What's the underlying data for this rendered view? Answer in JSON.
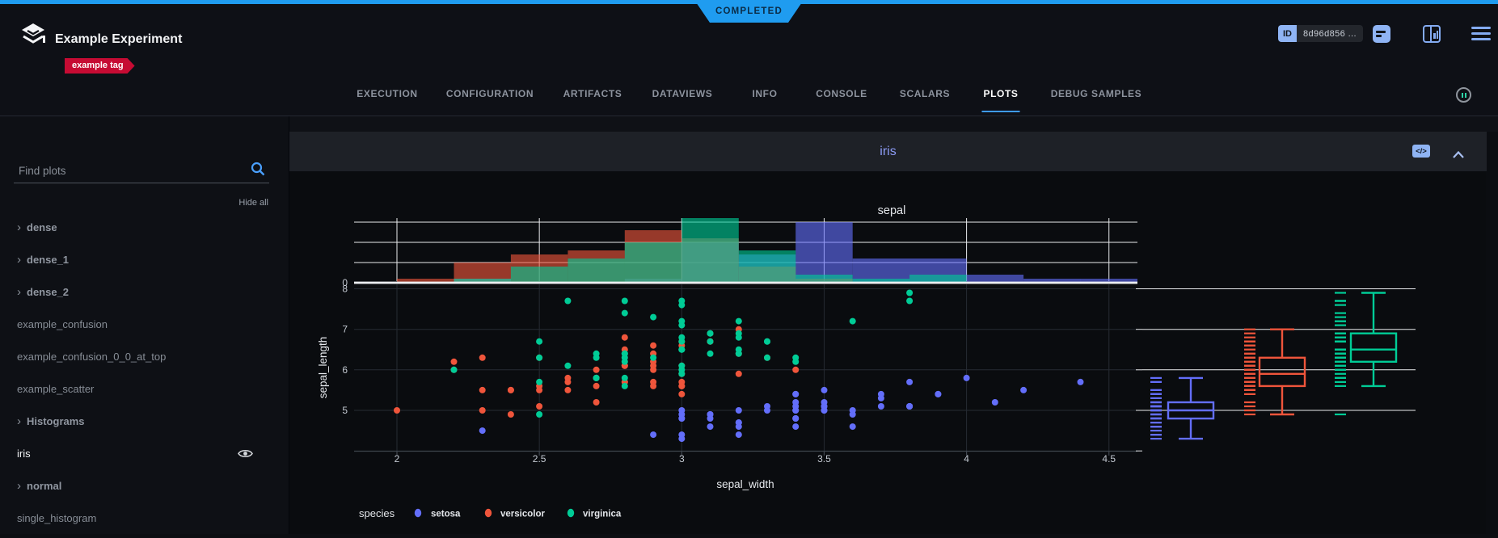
{
  "status_ribbon": "COMPLETED",
  "header": {
    "title": "Example Experiment",
    "tag": "example tag",
    "id_label": "ID",
    "id_value": "8d96d856 ..."
  },
  "tabs": [
    {
      "label": "EXECUTION"
    },
    {
      "label": "CONFIGURATION"
    },
    {
      "label": "ARTIFACTS"
    },
    {
      "label": "DATAVIEWS"
    },
    {
      "label": "INFO"
    },
    {
      "label": "CONSOLE"
    },
    {
      "label": "SCALARS"
    },
    {
      "label": "PLOTS",
      "active": true
    },
    {
      "label": "DEBUG SAMPLES"
    }
  ],
  "sidebar": {
    "search_placeholder": "Find plots",
    "hide_all": "Hide all",
    "items": [
      {
        "label": "dense",
        "group": true
      },
      {
        "label": "dense_1",
        "group": true
      },
      {
        "label": "dense_2",
        "group": true
      },
      {
        "label": "example_confusion"
      },
      {
        "label": "example_confusion_0_0_at_top"
      },
      {
        "label": "example_scatter"
      },
      {
        "label": "Histograms",
        "group": true
      },
      {
        "label": "iris",
        "active": true,
        "visible_eye": true
      },
      {
        "label": "normal",
        "group": true
      },
      {
        "label": "single_histogram"
      }
    ]
  },
  "panel": {
    "title": "iris",
    "code_icon": "</>"
  },
  "chart_data": {
    "type": "scatter",
    "title": "sepal",
    "xlabel": "sepal_width",
    "ylabel": "sepal_length",
    "x_ticks": [
      2,
      2.5,
      3,
      3.5,
      4,
      4.5
    ],
    "y_ticks": [
      5,
      6,
      7,
      8
    ],
    "xlim": [
      1.85,
      4.6
    ],
    "ylim": [
      4.0,
      8.1
    ],
    "grid": true,
    "legend_title": "species",
    "legend_position": "bottom-left",
    "marginal_x": "histogram",
    "marginal_y": "box+rug",
    "hist_bin_start": 2.0,
    "hist_bin_size": 0.2,
    "hist_zero_label": "0",
    "hist_grid_counts": [
      5,
      10,
      15
    ],
    "series": [
      {
        "name": "setosa",
        "color": "#636EFA",
        "points": [
          [
            3.5,
            5.1
          ],
          [
            3.0,
            4.9
          ],
          [
            3.2,
            4.7
          ],
          [
            3.1,
            4.6
          ],
          [
            3.6,
            5.0
          ],
          [
            3.9,
            5.4
          ],
          [
            3.4,
            4.6
          ],
          [
            3.4,
            5.0
          ],
          [
            2.9,
            4.4
          ],
          [
            3.1,
            4.9
          ],
          [
            3.7,
            5.4
          ],
          [
            3.4,
            4.8
          ],
          [
            3.0,
            4.8
          ],
          [
            3.0,
            4.3
          ],
          [
            4.0,
            5.8
          ],
          [
            4.4,
            5.7
          ],
          [
            3.9,
            5.4
          ],
          [
            3.5,
            5.1
          ],
          [
            3.8,
            5.7
          ],
          [
            3.8,
            5.1
          ],
          [
            3.4,
            5.4
          ],
          [
            3.7,
            5.1
          ],
          [
            3.6,
            4.6
          ],
          [
            3.3,
            5.1
          ],
          [
            3.4,
            4.8
          ],
          [
            3.0,
            5.0
          ],
          [
            3.4,
            5.0
          ],
          [
            3.5,
            5.2
          ],
          [
            3.4,
            5.2
          ],
          [
            3.2,
            4.7
          ],
          [
            3.1,
            4.8
          ],
          [
            3.4,
            5.4
          ],
          [
            4.1,
            5.2
          ],
          [
            4.2,
            5.5
          ],
          [
            3.1,
            4.9
          ],
          [
            3.2,
            5.0
          ],
          [
            3.5,
            5.5
          ],
          [
            3.6,
            4.9
          ],
          [
            3.0,
            4.4
          ],
          [
            3.4,
            5.1
          ],
          [
            3.5,
            5.0
          ],
          [
            2.3,
            4.5
          ],
          [
            3.2,
            4.4
          ],
          [
            3.5,
            5.0
          ],
          [
            3.8,
            5.1
          ],
          [
            3.0,
            4.8
          ],
          [
            3.8,
            5.1
          ],
          [
            3.2,
            4.6
          ],
          [
            3.7,
            5.3
          ],
          [
            3.3,
            5.0
          ]
        ],
        "hist_counts": [
          0,
          1,
          0,
          0,
          1,
          10,
          7,
          15,
          6,
          6,
          2,
          1,
          1
        ],
        "box": {
          "low": 4.3,
          "q1": 4.8,
          "median": 5.0,
          "q3": 5.2,
          "high": 5.8
        }
      },
      {
        "name": "versicolor",
        "color": "#EF553B",
        "points": [
          [
            3.2,
            7.0
          ],
          [
            3.2,
            6.4
          ],
          [
            3.1,
            6.9
          ],
          [
            2.3,
            5.5
          ],
          [
            2.8,
            6.5
          ],
          [
            2.8,
            5.7
          ],
          [
            3.3,
            6.3
          ],
          [
            2.4,
            4.9
          ],
          [
            2.9,
            6.6
          ],
          [
            2.7,
            5.2
          ],
          [
            2.0,
            5.0
          ],
          [
            3.0,
            5.9
          ],
          [
            2.2,
            6.0
          ],
          [
            2.9,
            6.1
          ],
          [
            2.9,
            5.6
          ],
          [
            3.1,
            6.7
          ],
          [
            3.0,
            5.6
          ],
          [
            2.7,
            5.8
          ],
          [
            2.2,
            6.2
          ],
          [
            2.5,
            5.6
          ],
          [
            3.2,
            5.9
          ],
          [
            2.8,
            6.1
          ],
          [
            2.5,
            6.3
          ],
          [
            2.8,
            6.1
          ],
          [
            2.9,
            6.4
          ],
          [
            3.0,
            6.6
          ],
          [
            2.8,
            6.8
          ],
          [
            3.0,
            6.7
          ],
          [
            2.9,
            6.0
          ],
          [
            2.6,
            5.7
          ],
          [
            2.4,
            5.5
          ],
          [
            2.4,
            5.5
          ],
          [
            2.7,
            5.8
          ],
          [
            2.7,
            6.0
          ],
          [
            3.0,
            5.4
          ],
          [
            3.4,
            6.0
          ],
          [
            3.1,
            6.7
          ],
          [
            2.3,
            6.3
          ],
          [
            3.0,
            5.6
          ],
          [
            2.5,
            5.5
          ],
          [
            2.6,
            5.5
          ],
          [
            3.0,
            6.1
          ],
          [
            2.6,
            5.8
          ],
          [
            2.3,
            5.0
          ],
          [
            2.7,
            5.6
          ],
          [
            3.0,
            5.7
          ],
          [
            2.9,
            5.7
          ],
          [
            2.9,
            6.2
          ],
          [
            2.5,
            5.1
          ],
          [
            2.8,
            5.7
          ]
        ],
        "hist_counts": [
          1,
          5,
          7,
          8,
          13,
          11,
          4,
          1,
          0,
          0,
          0,
          0,
          0
        ],
        "box": {
          "low": 4.9,
          "q1": 5.6,
          "median": 5.9,
          "q3": 6.3,
          "high": 7.0
        }
      },
      {
        "name": "virginica",
        "color": "#00CC96",
        "points": [
          [
            3.3,
            6.3
          ],
          [
            2.7,
            5.8
          ],
          [
            3.0,
            7.1
          ],
          [
            2.9,
            6.3
          ],
          [
            3.0,
            6.5
          ],
          [
            3.0,
            7.6
          ],
          [
            2.5,
            4.9
          ],
          [
            2.9,
            7.3
          ],
          [
            2.5,
            6.7
          ],
          [
            3.6,
            7.2
          ],
          [
            3.2,
            6.5
          ],
          [
            2.7,
            6.4
          ],
          [
            3.0,
            6.8
          ],
          [
            2.5,
            5.7
          ],
          [
            2.8,
            5.8
          ],
          [
            3.2,
            6.4
          ],
          [
            3.0,
            6.5
          ],
          [
            3.8,
            7.7
          ],
          [
            2.6,
            7.7
          ],
          [
            2.2,
            6.0
          ],
          [
            3.2,
            6.9
          ],
          [
            2.8,
            5.6
          ],
          [
            2.8,
            7.7
          ],
          [
            2.7,
            6.3
          ],
          [
            3.3,
            6.7
          ],
          [
            3.2,
            7.2
          ],
          [
            2.8,
            6.2
          ],
          [
            3.0,
            6.1
          ],
          [
            2.8,
            6.4
          ],
          [
            3.0,
            7.2
          ],
          [
            2.8,
            7.4
          ],
          [
            3.8,
            7.9
          ],
          [
            2.8,
            6.4
          ],
          [
            2.8,
            6.3
          ],
          [
            2.6,
            6.1
          ],
          [
            3.0,
            7.7
          ],
          [
            3.4,
            6.3
          ],
          [
            3.1,
            6.4
          ],
          [
            3.0,
            6.0
          ],
          [
            3.1,
            6.9
          ],
          [
            3.1,
            6.7
          ],
          [
            3.1,
            6.9
          ],
          [
            2.7,
            5.8
          ],
          [
            3.2,
            6.8
          ],
          [
            3.3,
            6.7
          ],
          [
            3.0,
            6.7
          ],
          [
            2.5,
            6.3
          ],
          [
            3.0,
            6.5
          ],
          [
            3.4,
            6.2
          ],
          [
            3.0,
            5.9
          ]
        ],
        "hist_counts": [
          0,
          1,
          4,
          6,
          10,
          16,
          8,
          2,
          1,
          2,
          0,
          0,
          0
        ],
        "box": {
          "low": 5.6,
          "q1": 6.2,
          "median": 6.5,
          "q3": 6.9,
          "high": 7.9
        }
      }
    ]
  }
}
